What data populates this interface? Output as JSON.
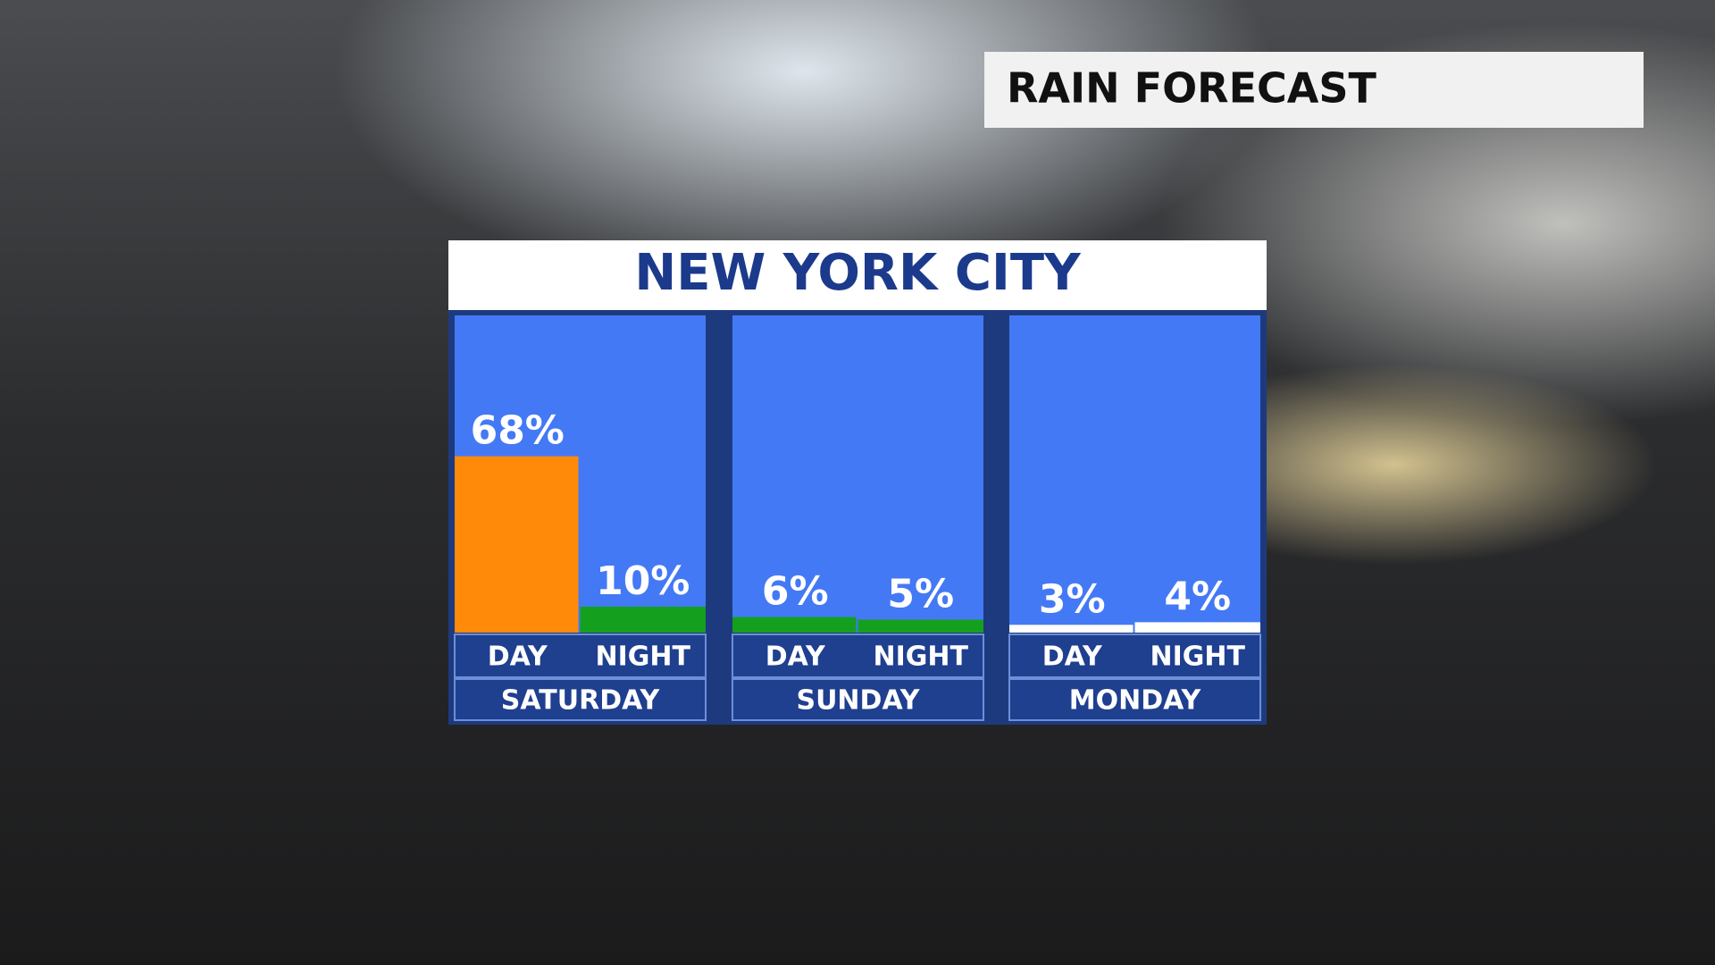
{
  "header": {
    "title": "RAIN FORECAST"
  },
  "chart_data": {
    "type": "bar",
    "title": "NEW YORK CITY",
    "categories": [
      "SATURDAY",
      "SUNDAY",
      "MONDAY"
    ],
    "series": [
      {
        "name": "DAY",
        "values": [
          68,
          6,
          3
        ],
        "value_labels": [
          "68%",
          "6%",
          "3%"
        ],
        "colors": [
          "#ff8a0a",
          "#14a01e",
          "#ffffff"
        ]
      },
      {
        "name": "NIGHT",
        "values": [
          10,
          5,
          4
        ],
        "value_labels": [
          "10%",
          "5%",
          "4%"
        ],
        "colors": [
          "#14a01e",
          "#14a01e",
          "#ffffff"
        ]
      }
    ]
  }
}
